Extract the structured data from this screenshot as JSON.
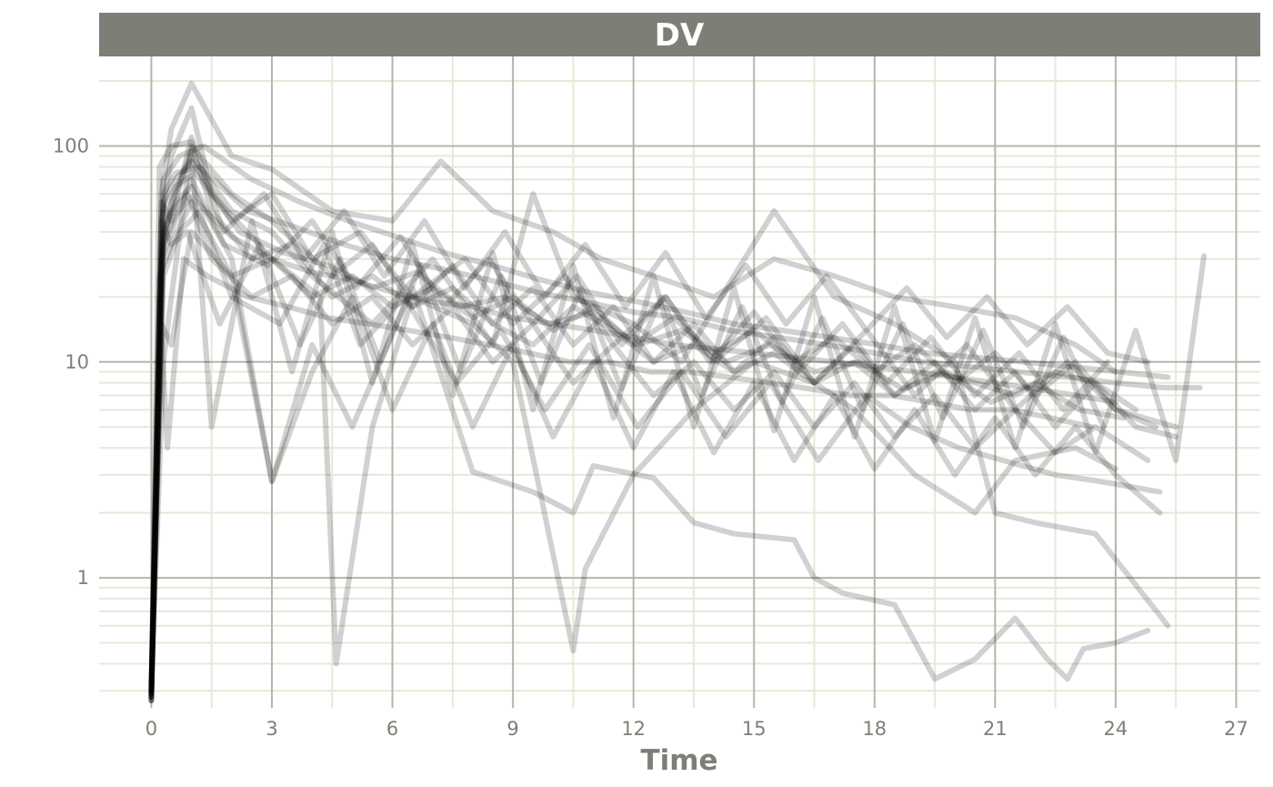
{
  "colors": {
    "strip_bg": "#7f7e76",
    "strip_text": "#ffffff",
    "grid_major": "#b5b5ab",
    "grid_minor": "#e8e8d8",
    "axis_text": "#7f7e76",
    "line": "#000000"
  },
  "chart_data": {
    "type": "line",
    "title": "",
    "facet_label": "DV",
    "xlabel": "Time",
    "ylabel": "",
    "xlim": [
      -1.3,
      27.6
    ],
    "ylim": [
      0.25,
      260
    ],
    "yscale": "log10",
    "x_ticks": [
      0,
      3,
      6,
      9,
      12,
      15,
      18,
      21,
      24,
      27
    ],
    "x_tick_labels": [
      "0",
      "3",
      "6",
      "9",
      "12",
      "15",
      "18",
      "21",
      "24",
      "27"
    ],
    "y_ticks": [
      1,
      10,
      100
    ],
    "y_tick_labels": [
      "1",
      "10",
      "100"
    ],
    "grid": true,
    "legend": "none",
    "line_alpha": 0.18,
    "series": [
      {
        "x": [
          0,
          0.25,
          0.5,
          1,
          2,
          3,
          4.5,
          6,
          7.2,
          8.5,
          10,
          11.2,
          12.5,
          14,
          15.5,
          17,
          18.5,
          20,
          21.5,
          23,
          24
        ],
        "y": [
          0.28,
          60,
          120,
          195,
          90,
          78,
          50,
          45,
          85,
          50,
          40,
          30,
          25,
          20,
          30,
          25,
          20,
          18,
          16,
          12,
          9
        ]
      },
      {
        "x": [
          0,
          0.25,
          0.5,
          1,
          1.5,
          3,
          4.2,
          4.6,
          5.5,
          6.5,
          8,
          9,
          10.5,
          10.8,
          12,
          13.5,
          15,
          16.5,
          17.5,
          19,
          20.5,
          21.5,
          23,
          24
        ],
        "y": [
          0.3,
          45,
          90,
          150,
          60,
          30,
          20,
          0.4,
          5,
          20,
          15,
          10,
          0.46,
          1.1,
          3,
          6,
          10,
          8,
          6,
          3,
          2,
          3.5,
          4,
          3.2
        ]
      },
      {
        "x": [
          0,
          0.25,
          0.6,
          1,
          2,
          3,
          4,
          5,
          6.5,
          8,
          9.5,
          10.5,
          11,
          12.5,
          13.5,
          14.5,
          16,
          16.5,
          17.2,
          18.5,
          19.5,
          20.5,
          21.5,
          22.3,
          22.8,
          23.2,
          24,
          24.8
        ],
        "y": [
          0.27,
          30,
          45,
          70,
          30,
          2.8,
          12,
          5,
          22,
          3.1,
          2.5,
          2,
          3.3,
          2.9,
          1.8,
          1.6,
          1.5,
          1.0,
          0.85,
          0.75,
          0.34,
          0.42,
          0.65,
          0.42,
          0.34,
          0.47,
          0.5,
          0.57
        ]
      },
      {
        "x": [
          0,
          0.3,
          0.6,
          1,
          2,
          3,
          4,
          5.5,
          7,
          8.5,
          9.5,
          10.5,
          12,
          13.2,
          14.5,
          15.5,
          17,
          18.5,
          20,
          21,
          22,
          23.5,
          25.3
        ],
        "y": [
          0.3,
          40,
          60,
          90,
          50,
          40,
          25,
          15,
          30,
          12,
          60,
          20,
          15,
          10,
          25,
          50,
          20,
          15,
          10,
          2,
          1.8,
          1.6,
          0.6
        ]
      },
      {
        "x": [
          0,
          0.2,
          0.5,
          1,
          1.5,
          2.5,
          3.5,
          4.5,
          5.5,
          6.5,
          7.5,
          8.5,
          9.5,
          10.5,
          11.5,
          12.5,
          13.5,
          14.5,
          15.5,
          16.5,
          17.5,
          18.5,
          19.5,
          20.5,
          21.5,
          22.5,
          23.5,
          24.5
        ],
        "y": [
          0.28,
          80,
          100,
          105,
          50,
          30,
          35,
          20,
          25,
          18,
          22,
          15,
          12,
          18,
          14,
          10,
          12,
          9,
          11,
          8,
          10,
          7,
          9,
          8,
          7,
          9,
          8,
          6
        ]
      },
      {
        "x": [
          0,
          0.3,
          0.7,
          1.2,
          2,
          3.2,
          4.3,
          5.2,
          6.3,
          7.6,
          8.7,
          9.8,
          10.9,
          12.1,
          13.2,
          14.3,
          15.4,
          16.6,
          17.8,
          18.9,
          20.1,
          21.2,
          22.5,
          23.6,
          25.1
        ],
        "y": [
          0.29,
          25,
          40,
          50,
          20,
          15,
          35,
          12,
          20,
          8,
          14,
          6,
          12,
          5,
          9,
          4.5,
          8,
          3.5,
          7,
          5,
          4,
          3.5,
          3,
          2.8,
          2.5
        ]
      },
      {
        "x": [
          0,
          0.3,
          0.5,
          1,
          2,
          3,
          4.5,
          5.5,
          6.5,
          7.5,
          8.5,
          9.5,
          10.5,
          11.5,
          12.5,
          13.5,
          14.5,
          15.5,
          16.5,
          17.5,
          18.5,
          19.5,
          20.5,
          21.5,
          22.5,
          23.5,
          24.5,
          25.5
        ],
        "y": [
          0.3,
          10,
          20,
          100,
          60,
          45,
          25,
          35,
          18,
          28,
          15,
          22,
          12,
          18,
          10,
          15,
          9,
          13,
          8,
          12,
          7,
          10,
          6,
          9,
          5,
          8,
          5,
          4.5
        ]
      },
      {
        "x": [
          0,
          0.3,
          0.6,
          1,
          2,
          3,
          4,
          5.2,
          6.5,
          7.8,
          9,
          10.3,
          11.5,
          12.8,
          14,
          15.3,
          16.5,
          17.8,
          19,
          20.3,
          21.5,
          22.8,
          24,
          25.5
        ],
        "y": [
          0.27,
          55,
          70,
          85,
          45,
          60,
          30,
          40,
          20,
          30,
          15,
          25,
          12,
          20,
          10,
          16,
          8,
          14,
          7,
          12,
          6,
          10,
          6,
          5
        ]
      },
      {
        "x": [
          0,
          0.25,
          0.5,
          0.9,
          1.5,
          2.5,
          3.5,
          4.5,
          5.5,
          6.5,
          7.5,
          8.5,
          9.5,
          10.5,
          11.5,
          12.5,
          13.5,
          14.5,
          15.5,
          16.5,
          17.5,
          18.5,
          19.5,
          20.5,
          21.5,
          22.5,
          23.5,
          24.8
        ],
        "y": [
          0.3,
          35,
          50,
          60,
          30,
          20,
          25,
          15,
          20,
          12,
          18,
          10,
          15,
          8,
          12,
          7,
          10,
          6,
          9,
          5,
          8,
          4.5,
          7,
          4,
          6,
          3.8,
          5,
          3.5
        ]
      },
      {
        "x": [
          0,
          0.25,
          0.5,
          1,
          2,
          3,
          4,
          5,
          6,
          7,
          8,
          9,
          10,
          11,
          12,
          13,
          14,
          15,
          16,
          17,
          18,
          19,
          20,
          21,
          22,
          23,
          24,
          25
        ],
        "y": [
          0.28,
          15,
          12,
          40,
          25,
          30,
          20,
          25,
          18,
          22,
          16,
          20,
          14,
          18,
          12,
          16,
          11,
          14,
          10,
          13,
          9,
          12,
          8,
          11,
          7,
          10,
          6,
          5
        ]
      },
      {
        "x": [
          0,
          0.3,
          0.6,
          1.1,
          2.2,
          3.3,
          4.4,
          5.5,
          6.6,
          7.7,
          8.8,
          9.9,
          11,
          12.1,
          13.2,
          14.3,
          15.4,
          16.5,
          17.6,
          18.7,
          19.8,
          20.9,
          22,
          23.1,
          24.2
        ],
        "y": [
          0.29,
          50,
          65,
          75,
          40,
          32,
          28,
          22,
          26,
          18,
          20,
          15,
          17,
          12,
          14,
          10,
          12,
          9,
          10,
          7.5,
          9,
          6.5,
          8,
          6,
          5.5
        ]
      },
      {
        "x": [
          0,
          0.2,
          0.4,
          0.8,
          1.4,
          2.4,
          3.4,
          4.4,
          5.4,
          6.4,
          7.4,
          8.4,
          9.4,
          10.4,
          11.4,
          12.4,
          13.4,
          14.4,
          15.4,
          16.4,
          17.4,
          18.4,
          19.4,
          20.4,
          21.4,
          22.4,
          23.4
        ],
        "y": [
          0.3,
          20,
          4,
          30,
          25,
          20,
          18,
          16,
          15,
          14,
          13,
          12,
          11,
          10,
          10,
          9,
          9,
          8.5,
          8,
          7.5,
          7,
          7,
          6.5,
          6,
          6,
          5.5,
          5
        ]
      },
      {
        "x": [
          0,
          0.3,
          0.6,
          1,
          1.8,
          2.9,
          4,
          5.1,
          6.2,
          7.3,
          8.4,
          9.5,
          10.6,
          11.7,
          12.8,
          13.9,
          15,
          16.1,
          17.2,
          18.3,
          19.4,
          20.5,
          21.6,
          22.7,
          23.8
        ],
        "y": [
          0.27,
          40,
          55,
          65,
          35,
          28,
          45,
          22,
          38,
          18,
          30,
          15,
          25,
          12,
          20,
          10,
          17,
          9,
          15,
          8,
          13,
          7,
          11,
          6,
          10
        ]
      },
      {
        "x": [
          0,
          0.25,
          0.5,
          1,
          1.5,
          2.5,
          3.5,
          4.5,
          5.5,
          6.5,
          7.5,
          8.5,
          9.5,
          10.5,
          11.5,
          12.5,
          13.5,
          14.5,
          15.5,
          16.5,
          17.5,
          18.5,
          19.5,
          20.5,
          21.5,
          22.5,
          23.5,
          24.5,
          25.5,
          26.2
        ],
        "y": [
          0.29,
          30,
          55,
          95,
          5,
          45,
          9,
          40,
          8,
          35,
          7,
          32,
          6,
          28,
          5.5,
          25,
          5,
          22,
          4.8,
          20,
          4.5,
          18,
          4.3,
          16,
          4,
          15,
          3.8,
          14,
          3.5,
          31
        ]
      },
      {
        "x": [
          0,
          0.3,
          0.6,
          1.2,
          2.4,
          3.6,
          4.8,
          6,
          7.2,
          8.4,
          9.6,
          10.8,
          12,
          13.2,
          14.4,
          15.6,
          16.8,
          18,
          19.2,
          20.4,
          21.6,
          22.8,
          24,
          25.2,
          26.1
        ],
        "y": [
          0.3,
          60,
          75,
          80,
          50,
          42,
          35,
          30,
          27,
          24,
          21,
          19,
          17,
          16,
          14,
          13,
          12,
          11,
          10,
          9.5,
          9,
          8.5,
          8,
          7.6,
          7.6
        ]
      },
      {
        "x": [
          0,
          0.25,
          0.5,
          1,
          2,
          3,
          4,
          5,
          6,
          7,
          8,
          9,
          10,
          11,
          12,
          13,
          14,
          15,
          16,
          17,
          18,
          19,
          20,
          21,
          22,
          23,
          24,
          25.1
        ],
        "y": [
          0.28,
          45,
          35,
          55,
          25,
          2.8,
          9,
          20,
          6,
          15,
          5,
          12,
          4.5,
          10,
          4,
          9,
          3.8,
          8,
          3.5,
          7,
          3.2,
          6,
          3,
          5.5,
          3,
          5,
          3,
          2
        ]
      },
      {
        "x": [
          0,
          0.3,
          0.7,
          1.3,
          2.5,
          3.7,
          4.9,
          6.1,
          7.3,
          8.5,
          9.7,
          10.9,
          12.1,
          13.3,
          14.5,
          15.7,
          16.9,
          18.1,
          19.3,
          20.5,
          21.7,
          22.9,
          24.1,
          25.3
        ],
        "y": [
          0.27,
          70,
          90,
          100,
          70,
          55,
          45,
          38,
          32,
          28,
          24,
          21,
          19,
          17,
          15,
          14,
          13,
          12,
          11,
          10.5,
          10,
          9.5,
          9,
          8.5
        ]
      },
      {
        "x": [
          0,
          0.2,
          0.5,
          0.9,
          1.7,
          2.7,
          3.7,
          4.7,
          5.7,
          6.7,
          7.7,
          8.7,
          9.7,
          10.7,
          11.7,
          12.7,
          13.7,
          14.7,
          15.7,
          16.7,
          17.7,
          18.7,
          19.7,
          20.7,
          21.7,
          22.7,
          23.7
        ],
        "y": [
          0.3,
          25,
          35,
          40,
          15,
          35,
          12,
          30,
          10,
          28,
          9,
          25,
          8,
          22,
          7.5,
          20,
          7,
          18,
          6.5,
          16,
          6,
          15,
          5.5,
          14,
          5,
          13,
          5
        ]
      },
      {
        "x": [
          0,
          0.3,
          0.6,
          1,
          2,
          3,
          4,
          5,
          6,
          7,
          8,
          9,
          10,
          11,
          12,
          13,
          14,
          15,
          16,
          17,
          18,
          19,
          20,
          21,
          22,
          23,
          24
        ],
        "y": [
          0.29,
          35,
          48,
          58,
          38,
          30,
          26,
          24,
          21,
          19,
          18,
          16,
          15,
          14,
          13,
          12,
          11.5,
          11,
          10.5,
          10,
          9.5,
          9,
          8.5,
          8,
          7.5,
          7,
          6.5
        ]
      },
      {
        "x": [
          0,
          0.25,
          0.5,
          1,
          1.8,
          2.8,
          3.8,
          4.8,
          5.8,
          6.8,
          7.8,
          8.8,
          9.8,
          10.8,
          11.8,
          12.8,
          13.8,
          14.8,
          15.8,
          16.8,
          17.8,
          18.8,
          19.8,
          20.8,
          21.8,
          22.8,
          23.8,
          24.8
        ],
        "y": [
          0.28,
          55,
          45,
          110,
          40,
          60,
          30,
          50,
          25,
          45,
          22,
          40,
          20,
          35,
          18,
          32,
          16,
          28,
          15,
          25,
          14,
          22,
          13,
          20,
          12,
          18,
          11,
          10
        ]
      }
    ]
  }
}
